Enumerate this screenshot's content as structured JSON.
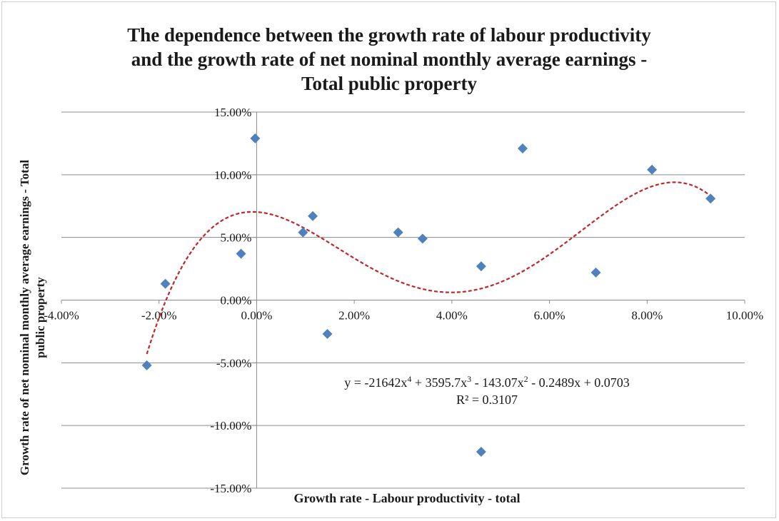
{
  "chart_data": {
    "type": "scatter",
    "title_lines": [
      "The dependence between the growth rate of labour productivity",
      "and the growth rate of net nominal monthly average  earnings -",
      "Total public property"
    ],
    "xlabel": "Growth rate - Labour productivity - total",
    "ylabel_lines": [
      "Growth rate of net nominal monthly average  earnings - Total",
      "public property"
    ],
    "xlim": [
      -0.04,
      0.1
    ],
    "ylim": [
      -0.15,
      0.15
    ],
    "x_ticks": [
      -0.04,
      -0.02,
      0.0,
      0.02,
      0.04,
      0.06,
      0.08,
      0.1
    ],
    "x_tick_labels": [
      "-4.00%",
      "-2.00%",
      "0.00%",
      "2.00%",
      "4.00%",
      "6.00%",
      "8.00%",
      "10.00%"
    ],
    "y_ticks": [
      0.15,
      0.1,
      0.05,
      0.0,
      -0.05,
      -0.1,
      -0.15
    ],
    "y_tick_labels": [
      "15.00%",
      "10.00%",
      "5.00%",
      "0.00%",
      "-5.00%",
      "-10.00%",
      "-15.00%"
    ],
    "grid": "horizontal",
    "marker_color": "#4f81bd",
    "trend_color": "#c0272d",
    "points": [
      {
        "x": -0.0225,
        "y": -0.052
      },
      {
        "x": -0.0187,
        "y": 0.013
      },
      {
        "x": -0.0032,
        "y": 0.037
      },
      {
        "x": -0.0003,
        "y": 0.129
      },
      {
        "x": 0.0095,
        "y": 0.054
      },
      {
        "x": 0.0115,
        "y": 0.067
      },
      {
        "x": 0.0145,
        "y": -0.027
      },
      {
        "x": 0.029,
        "y": 0.054
      },
      {
        "x": 0.034,
        "y": 0.049
      },
      {
        "x": 0.046,
        "y": 0.027
      },
      {
        "x": 0.046,
        "y": -0.121
      },
      {
        "x": 0.0545,
        "y": 0.121
      },
      {
        "x": 0.0695,
        "y": 0.022
      },
      {
        "x": 0.081,
        "y": 0.104
      },
      {
        "x": 0.093,
        "y": 0.081
      }
    ],
    "trendline": {
      "type": "polynomial",
      "order": 4,
      "coefficients": [
        0.0703,
        -0.2489,
        -143.07,
        3595.7,
        -21642
      ],
      "x_range": [
        -0.0225,
        0.093
      ],
      "equation_parts": [
        "y = -21642x",
        "4",
        " + 3595.7x",
        "3",
        " - 143.07x",
        "2",
        " - 0.2489x + 0.0703"
      ],
      "r_squared_label": "R² = 0.3107"
    }
  }
}
